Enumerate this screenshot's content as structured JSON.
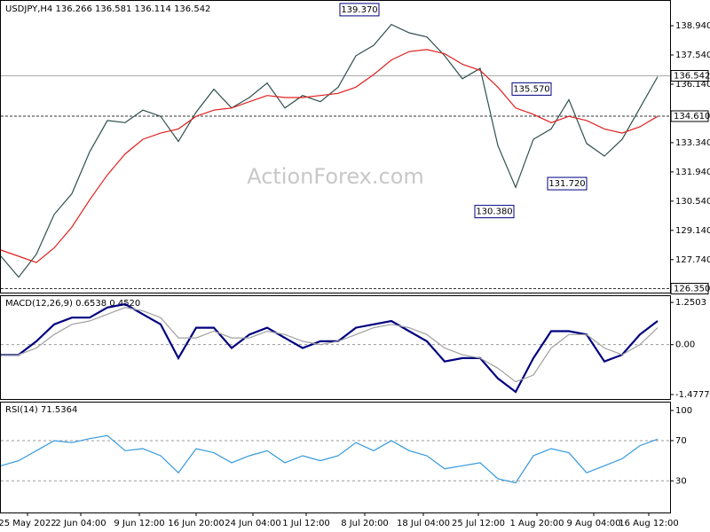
{
  "chart_data": [
    {
      "type": "line",
      "title": "USDJPY,H4  136.266 136.581 136.114 136.542",
      "watermark": "ActionForex.com",
      "x": [
        0,
        10,
        20,
        30,
        40,
        50,
        60,
        70,
        80,
        90,
        100,
        110,
        120,
        130,
        140,
        150,
        160,
        170,
        180,
        190,
        200,
        210,
        220,
        230,
        240,
        250,
        260,
        270,
        280,
        290,
        300,
        310,
        320,
        330,
        340,
        350,
        360,
        370
      ],
      "xlim": [
        0,
        377
      ],
      "ylim": [
        126.16,
        140.13
      ],
      "yticks": [
        {
          "value": 138.94,
          "label": "138.940"
        },
        {
          "value": 137.54,
          "label": "137.540"
        },
        {
          "value": 136.14,
          "label": "136.140"
        },
        {
          "value": 133.34,
          "label": "133.340"
        },
        {
          "value": 131.94,
          "label": "131.940"
        },
        {
          "value": 130.54,
          "label": "130.540"
        },
        {
          "value": 129.14,
          "label": "129.140"
        },
        {
          "value": 127.74,
          "label": "127.740"
        }
      ],
      "series": [
        {
          "color": "#2f4f4f",
          "values": [
            127.9,
            126.9,
            128.0,
            129.9,
            130.9,
            132.9,
            134.4,
            134.3,
            134.9,
            134.6,
            133.4,
            134.8,
            135.9,
            135.0,
            135.5,
            136.2,
            135.0,
            135.6,
            135.3,
            136.0,
            137.5,
            138.0,
            139.0,
            138.6,
            138.4,
            137.5,
            136.4,
            136.9,
            133.2,
            131.2,
            133.5,
            134.0,
            135.4,
            133.3,
            132.7,
            133.5,
            135.0,
            136.5
          ]
        },
        {
          "color": "#e02020",
          "values": [
            128.2,
            127.9,
            127.6,
            128.3,
            129.3,
            130.6,
            131.8,
            132.8,
            133.5,
            133.8,
            134.0,
            134.6,
            134.9,
            135.0,
            135.3,
            135.6,
            135.5,
            135.5,
            135.6,
            135.7,
            136.0,
            136.6,
            137.3,
            137.7,
            137.8,
            137.6,
            137.1,
            136.8,
            136.0,
            135.0,
            134.7,
            134.3,
            134.6,
            134.4,
            134.0,
            133.8,
            134.1,
            134.6
          ]
        }
      ],
      "levels": [
        {
          "value": 134.61,
          "label": "134.610",
          "style": "dashed"
        },
        {
          "value": 126.35,
          "label": "126.350",
          "style": "dashed"
        },
        {
          "value": 136.542,
          "label": "136.542",
          "style": "solid"
        }
      ],
      "annotations": [
        {
          "x": 215,
          "value": 139.37,
          "label": "139.370",
          "position": "above"
        },
        {
          "x": 312,
          "value": 135.57,
          "label": "135.570",
          "position": "above"
        },
        {
          "x": 291,
          "value": 130.38,
          "label": "130.380",
          "position": "below"
        },
        {
          "x": 332,
          "value": 131.72,
          "label": "131.720",
          "position": "below"
        }
      ]
    },
    {
      "type": "line",
      "title": "MACD(12,26,9) 0.6538 0.4520",
      "x": [
        0,
        10,
        20,
        30,
        40,
        50,
        60,
        70,
        80,
        90,
        100,
        110,
        120,
        130,
        140,
        150,
        160,
        170,
        180,
        190,
        200,
        210,
        220,
        230,
        240,
        250,
        260,
        270,
        280,
        290,
        300,
        310,
        320,
        330,
        340,
        350,
        360,
        370
      ],
      "xlim": [
        0,
        377
      ],
      "ylim": [
        -1.61,
        1.436
      ],
      "yticks": [
        {
          "value": 1.2503,
          "label": "1.2503"
        },
        {
          "value": 0,
          "label": "0.00"
        },
        {
          "value": -1.4777,
          "label": "-1.4777"
        }
      ],
      "series": [
        {
          "color": "#000080",
          "values": [
            -0.3,
            -0.3,
            0.1,
            0.6,
            0.8,
            0.8,
            1.1,
            1.2,
            0.9,
            0.6,
            -0.4,
            0.5,
            0.5,
            -0.1,
            0.3,
            0.5,
            0.2,
            -0.1,
            0.1,
            0.1,
            0.5,
            0.6,
            0.7,
            0.4,
            0.1,
            -0.5,
            -0.4,
            -0.4,
            -1.0,
            -1.4,
            -0.4,
            0.4,
            0.4,
            0.3,
            -0.5,
            -0.3,
            0.3,
            0.7
          ]
        },
        {
          "color": "#a0a0a0",
          "values": [
            -0.3,
            -0.3,
            -0.1,
            0.3,
            0.6,
            0.7,
            0.9,
            1.1,
            1.0,
            0.8,
            0.2,
            0.2,
            0.4,
            0.2,
            0.2,
            0.4,
            0.3,
            0.1,
            0.0,
            0.1,
            0.3,
            0.5,
            0.6,
            0.5,
            0.3,
            -0.1,
            -0.3,
            -0.4,
            -0.7,
            -1.1,
            -0.9,
            -0.1,
            0.3,
            0.3,
            -0.1,
            -0.3,
            0.0,
            0.5
          ]
        }
      ]
    },
    {
      "type": "line",
      "title": "RSI(14) 71.5364",
      "x": [
        0,
        10,
        20,
        30,
        40,
        50,
        60,
        70,
        80,
        90,
        100,
        110,
        120,
        130,
        140,
        150,
        160,
        170,
        180,
        190,
        200,
        210,
        220,
        230,
        240,
        250,
        260,
        270,
        280,
        290,
        300,
        310,
        320,
        330,
        340,
        350,
        360,
        370
      ],
      "xlim": [
        0,
        377
      ],
      "ylim": [
        -1.5,
        107.9
      ],
      "yticks": [
        100,
        70,
        30
      ],
      "xticks": [
        {
          "value": 15,
          "label": "25 May 2022"
        },
        {
          "value": 45,
          "label": "2 Jun 04:00"
        },
        {
          "value": 78,
          "label": "9 Jun 12:00"
        },
        {
          "value": 110,
          "label": "16 Jun 20:00"
        },
        {
          "value": 142,
          "label": "24 Jun 04:00"
        },
        {
          "value": 172,
          "label": "1 Jul 12:00"
        },
        {
          "value": 205,
          "label": "8 Jul 20:00"
        },
        {
          "value": 238,
          "label": "18 Jul 04:00"
        },
        {
          "value": 269,
          "label": "25 Jul 12:00"
        },
        {
          "value": 302,
          "label": "1 Aug 20:00"
        },
        {
          "value": 334,
          "label": "9 Aug 04:00"
        },
        {
          "value": 365,
          "label": "16 Aug 12:00"
        }
      ],
      "series": [
        {
          "color": "#3399dd",
          "values": [
            45,
            50,
            60,
            70,
            68,
            72,
            75,
            60,
            62,
            55,
            38,
            62,
            58,
            48,
            55,
            60,
            48,
            55,
            50,
            55,
            68,
            60,
            70,
            60,
            55,
            42,
            45,
            48,
            32,
            28,
            55,
            62,
            58,
            38,
            45,
            52,
            65,
            71.5
          ]
        }
      ]
    }
  ]
}
